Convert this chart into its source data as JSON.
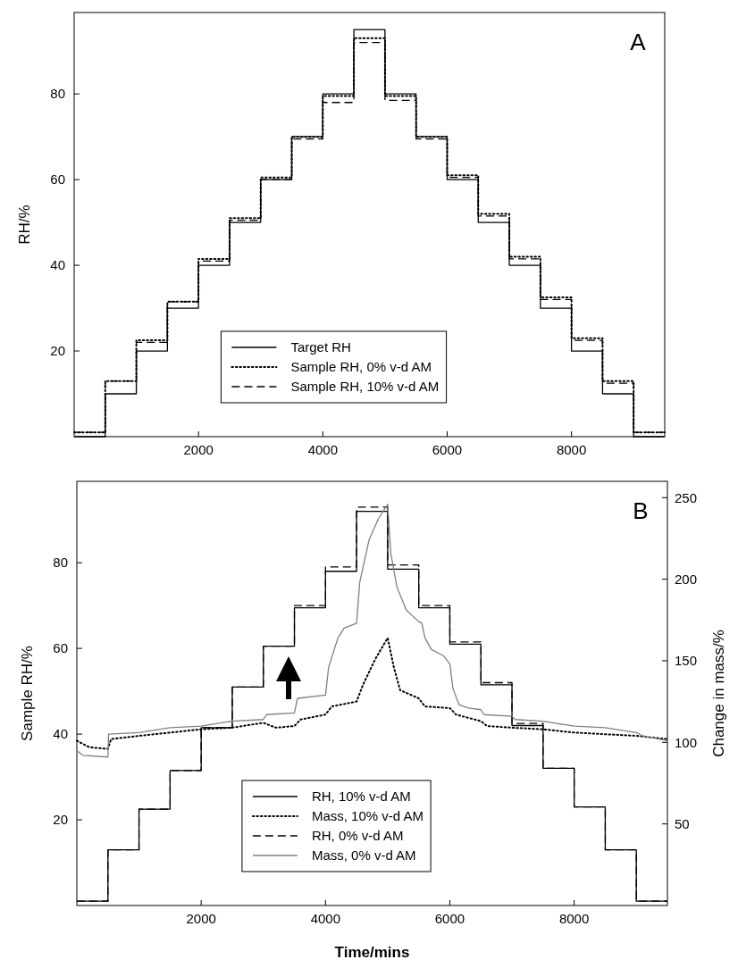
{
  "chart_data": [
    {
      "type": "step",
      "ylabel": "RH/%",
      "xlim": [
        0,
        9500
      ],
      "ylim": [
        0,
        99
      ],
      "xticks": [
        2000,
        4000,
        6000,
        8000
      ],
      "yticks": [
        20,
        40,
        60,
        80
      ],
      "legend": "bottom",
      "grid": false,
      "annotations": [
        "A"
      ],
      "x": [
        0,
        500,
        1000,
        1500,
        2000,
        2500,
        3000,
        3500,
        4000,
        4500,
        5000,
        5500,
        6000,
        6500,
        7000,
        7500,
        8000,
        8500,
        9000,
        9500
      ],
      "series": [
        {
          "name": "Target RH",
          "color": "#000000",
          "line_style": "solid",
          "values": [
            0,
            10,
            20,
            30,
            40,
            50,
            60,
            70,
            80,
            95,
            80,
            70,
            60,
            50,
            40,
            30,
            20,
            10,
            0,
            0
          ]
        },
        {
          "name": "Sample RH, 0% v-d AM",
          "color": "#000000",
          "line_style": "dotted",
          "values": [
            1,
            13,
            22.5,
            31.5,
            41.5,
            51,
            60.5,
            70,
            79.5,
            93,
            79.5,
            70,
            61,
            52,
            42,
            32.5,
            23,
            13,
            1,
            1
          ]
        },
        {
          "name": "Sample RH, 10% v-d AM",
          "color": "#000000",
          "line_style": "dashed",
          "values": [
            1,
            13,
            22,
            31.5,
            41,
            50.5,
            60,
            69.5,
            78,
            92,
            78.5,
            69.5,
            60.5,
            51.5,
            41.5,
            32,
            22.5,
            12.5,
            1,
            1
          ]
        }
      ]
    },
    {
      "type": "step",
      "xlabel": "Time/mins",
      "ylabel": "Sample RH/%",
      "y2label": "Change in mass/%",
      "xlim": [
        0,
        9500
      ],
      "ylim": [
        0,
        99
      ],
      "y2lim": [
        0,
        260
      ],
      "xticks": [
        2000,
        4000,
        6000,
        8000
      ],
      "yticks": [
        20,
        40,
        60,
        80
      ],
      "y2ticks": [
        50,
        100,
        150,
        200,
        250
      ],
      "legend": "bottom",
      "grid": false,
      "annotations": [
        "B"
      ],
      "x": [
        0,
        500,
        1000,
        1500,
        2000,
        2500,
        3000,
        3500,
        4000,
        4500,
        5000,
        5500,
        6000,
        6500,
        7000,
        7500,
        8000,
        8500,
        9000,
        9500
      ],
      "series": [
        {
          "name": "RH, 10% v-d AM",
          "color": "#000000",
          "line_style": "solid",
          "values": [
            1,
            13,
            22.5,
            31.5,
            41.5,
            51,
            60.5,
            69.5,
            78,
            92,
            78.5,
            69.5,
            61,
            51.5,
            42,
            32,
            23,
            13,
            1,
            1
          ]
        },
        {
          "name": "Mass, 10% v-d AM",
          "type": "line",
          "axis": "y2",
          "color": "#000000",
          "line_style": "dotted",
          "x": [
            0,
            200,
            500,
            550,
            1000,
            2000,
            2500,
            3000,
            3200,
            3500,
            3600,
            4000,
            4100,
            4500,
            4600,
            4800,
            5000,
            5100,
            5200,
            5500,
            5600,
            6000,
            6100,
            6500,
            6600,
            7000,
            7500,
            8000,
            9000,
            9500
          ],
          "values": [
            101,
            97,
            96,
            102,
            104,
            108,
            109,
            112,
            109,
            110,
            114,
            117,
            122,
            125,
            135,
            151,
            164,
            146,
            132,
            127,
            122,
            121,
            117,
            113,
            110,
            109,
            108,
            106,
            104,
            102
          ]
        },
        {
          "name": "RH, 0% v-d AM",
          "color": "#000000",
          "line_style": "dashed",
          "values": [
            1,
            13,
            22.5,
            31.5,
            41.5,
            51,
            60.5,
            70,
            79,
            93,
            79.5,
            70,
            61.5,
            52,
            42.5,
            32,
            23,
            13,
            1,
            1
          ]
        },
        {
          "name": "Mass, 0% v-d AM",
          "type": "line",
          "axis": "y2",
          "color": "#808080",
          "line_style": "solid",
          "x": [
            0,
            100,
            500,
            510,
            1000,
            1500,
            2000,
            2500,
            3000,
            3050,
            3500,
            3550,
            4000,
            4050,
            4200,
            4300,
            4500,
            4550,
            4700,
            4850,
            5000,
            5050,
            5150,
            5300,
            5500,
            5550,
            5600,
            5700,
            5900,
            6000,
            6050,
            6150,
            6300,
            6500,
            6550,
            7000,
            7050,
            7500,
            8000,
            8500,
            9000,
            9100,
            9500
          ],
          "values": [
            95,
            92,
            91,
            105,
            106,
            109,
            110,
            113,
            114,
            117,
            118,
            127,
            129,
            146,
            164,
            170,
            173,
            198,
            224,
            237,
            246,
            216,
            195,
            181,
            174,
            173,
            164,
            157,
            153,
            148,
            133,
            123,
            121,
            120,
            117,
            116,
            114,
            113,
            110,
            109,
            106,
            104,
            101
          ]
        }
      ]
    }
  ]
}
